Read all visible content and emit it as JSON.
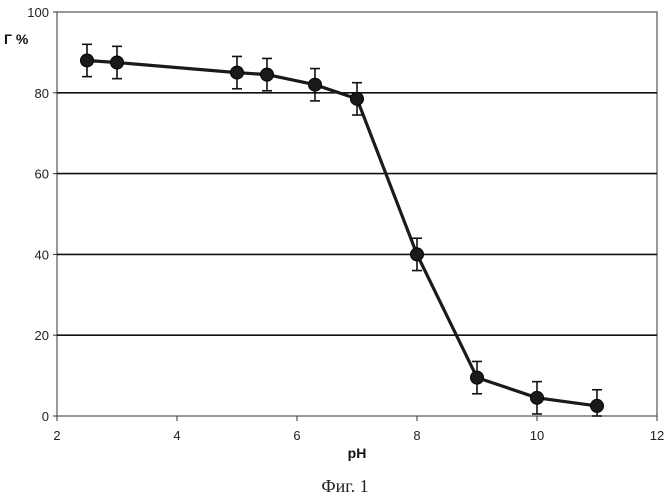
{
  "chart_data": {
    "type": "line",
    "xlabel": "pH",
    "ylabel": "Г %",
    "caption": "Фиг. 1",
    "xlim": [
      2,
      12
    ],
    "ylim": [
      0,
      100
    ],
    "xticks": [
      "2",
      "4",
      "6",
      "8",
      "10",
      "12"
    ],
    "yticks": [
      "0",
      "20",
      "40",
      "60",
      "80",
      "100"
    ],
    "grid": "horizontal",
    "line_color": "#1a1a1a",
    "series": [
      {
        "x": [
          2.5,
          3.0,
          5.0,
          5.5,
          6.3,
          7.0,
          8.0,
          9.0,
          10.0,
          11.0
        ],
        "y": [
          88,
          87.5,
          85,
          84.5,
          82,
          78.5,
          40,
          9.5,
          4.5,
          2.5
        ],
        "err": [
          4,
          4,
          4,
          4,
          4,
          4,
          4,
          4,
          4,
          4
        ]
      }
    ]
  }
}
